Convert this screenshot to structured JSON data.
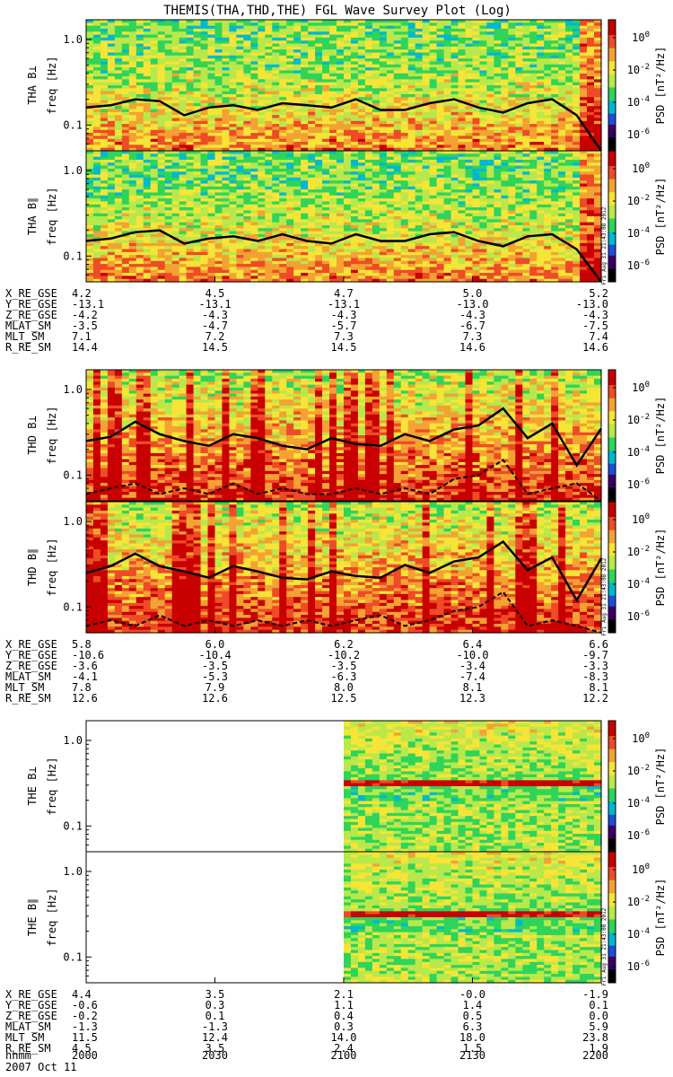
{
  "title": "THEMIS(THA,THD,THE) FGL Wave Survey Plot (Log)",
  "colorbar": {
    "label": "PSD [nT²/Hz]",
    "tick_labels": [
      "10^0",
      "10^-2",
      "10^-4",
      "10^-6"
    ],
    "stamp": "Fri Aug 31 21:43:08 2012"
  },
  "x_time": {
    "label": "hhmm",
    "date": "2007 Oct 11",
    "ticks": [
      "2000",
      "2030",
      "2100",
      "2130",
      "2200"
    ]
  },
  "ephemeris_rows": [
    "X_RE_GSE",
    "Y_RE_GSE",
    "Z_RE_GSE",
    "MLAT_SM",
    "MLT_SM",
    "R_RE_SM"
  ],
  "groups": [
    {
      "probe": "THA",
      "ephemeris": [
        [
          "4.2",
          "4.5",
          "4.7",
          "5.0",
          "5.2"
        ],
        [
          "-13.1",
          "-13.1",
          "-13.1",
          "-13.0",
          "-13.0"
        ],
        [
          "-4.2",
          "-4.3",
          "-4.3",
          "-4.3",
          "-4.3"
        ],
        [
          "-3.5",
          "-4.7",
          "-5.7",
          "-6.7",
          "-7.5"
        ],
        [
          "7.1",
          "7.2",
          "7.3",
          "7.3",
          "7.4"
        ],
        [
          "14.4",
          "14.5",
          "14.5",
          "14.6",
          "14.6"
        ]
      ]
    },
    {
      "probe": "THD",
      "ephemeris": [
        [
          "5.8",
          "6.0",
          "6.2",
          "6.4",
          "6.6"
        ],
        [
          "-10.6",
          "-10.4",
          "-10.2",
          "-10.0",
          "-9.7"
        ],
        [
          "-3.6",
          "-3.5",
          "-3.5",
          "-3.4",
          "-3.3"
        ],
        [
          "-4.1",
          "-5.3",
          "-6.3",
          "-7.4",
          "-8.3"
        ],
        [
          "7.8",
          "7.9",
          "8.0",
          "8.1",
          "8.1"
        ],
        [
          "12.6",
          "12.6",
          "12.5",
          "12.3",
          "12.2"
        ]
      ]
    },
    {
      "probe": "THE",
      "ephemeris": [
        [
          "4.4",
          "3.5",
          "2.1",
          "-0.0",
          "-1.9"
        ],
        [
          "-0.6",
          "0.3",
          "1.1",
          "1.4",
          "0.1"
        ],
        [
          "-0.2",
          "0.1",
          "0.4",
          "0.5",
          "0.0"
        ],
        [
          "-1.3",
          "-1.3",
          "0.3",
          "6.3",
          "5.9"
        ],
        [
          "11.5",
          "12.4",
          "14.0",
          "18.0",
          "23.8"
        ],
        [
          "4.5",
          "3.5",
          "2.4",
          "1.5",
          "1.9"
        ]
      ]
    }
  ],
  "chart_data": [
    {
      "type": "heatmap",
      "name": "THA B⊥",
      "ylabel": "THA B⊥",
      "yunit": "freq [Hz]",
      "ylim": [
        0.05,
        1.7
      ],
      "yscale": "log",
      "yticks": [
        "1.0",
        "0.1"
      ],
      "zlabel": "PSD [nT²/Hz]",
      "zlim": [
        1e-07,
        10
      ],
      "lines": [
        {
          "style": "solid",
          "hz": [
            0.16,
            0.17,
            0.2,
            0.19,
            0.13,
            0.16,
            0.17,
            0.15,
            0.18,
            0.17,
            0.16,
            0.2,
            0.15,
            0.15,
            0.18,
            0.2,
            0.16,
            0.14,
            0.18,
            0.2,
            0.13,
            0.05
          ]
        }
      ]
    },
    {
      "type": "heatmap",
      "name": "THA B∥",
      "ylabel": "THA B∥",
      "yunit": "freq [Hz]",
      "ylim": [
        0.05,
        1.7
      ],
      "yscale": "log",
      "yticks": [
        "1.0",
        "0.1"
      ],
      "zlabel": "PSD [nT²/Hz]",
      "zlim": [
        1e-07,
        10
      ],
      "lines": [
        {
          "style": "solid",
          "hz": [
            0.15,
            0.16,
            0.19,
            0.2,
            0.14,
            0.16,
            0.17,
            0.15,
            0.18,
            0.15,
            0.14,
            0.18,
            0.15,
            0.15,
            0.18,
            0.19,
            0.15,
            0.13,
            0.17,
            0.18,
            0.12,
            0.05
          ]
        }
      ]
    },
    {
      "type": "heatmap",
      "name": "THD B⊥",
      "ylabel": "THD B⊥",
      "yunit": "freq [Hz]",
      "ylim": [
        0.05,
        1.7
      ],
      "yscale": "log",
      "yticks": [
        "1.0",
        "0.1"
      ],
      "zlabel": "PSD [nT²/Hz]",
      "zlim": [
        1e-07,
        10
      ],
      "lines": [
        {
          "style": "solid",
          "hz": [
            0.25,
            0.28,
            0.42,
            0.3,
            0.25,
            0.22,
            0.3,
            0.27,
            0.22,
            0.2,
            0.27,
            0.23,
            0.22,
            0.3,
            0.25,
            0.34,
            0.38,
            0.6,
            0.27,
            0.4,
            0.13,
            0.35
          ]
        },
        {
          "style": "dashed",
          "hz": [
            0.06,
            0.07,
            0.08,
            0.06,
            0.07,
            0.06,
            0.08,
            0.06,
            0.07,
            0.06,
            0.06,
            0.07,
            0.06,
            0.07,
            0.06,
            0.09,
            0.1,
            0.15,
            0.06,
            0.07,
            0.08,
            0.05
          ]
        }
      ]
    },
    {
      "type": "heatmap",
      "name": "THD B∥",
      "ylabel": "THD B∥",
      "yunit": "freq [Hz]",
      "ylim": [
        0.05,
        1.7
      ],
      "yscale": "log",
      "yticks": [
        "1.0",
        "0.1"
      ],
      "zlabel": "PSD [nT²/Hz]",
      "zlim": [
        1e-07,
        10
      ],
      "lines": [
        {
          "style": "solid",
          "hz": [
            0.25,
            0.3,
            0.42,
            0.3,
            0.26,
            0.22,
            0.3,
            0.26,
            0.22,
            0.21,
            0.26,
            0.23,
            0.22,
            0.31,
            0.25,
            0.34,
            0.38,
            0.58,
            0.27,
            0.38,
            0.12,
            0.37
          ]
        },
        {
          "style": "dashed",
          "hz": [
            0.06,
            0.07,
            0.06,
            0.08,
            0.06,
            0.07,
            0.06,
            0.07,
            0.06,
            0.07,
            0.06,
            0.07,
            0.08,
            0.06,
            0.07,
            0.09,
            0.1,
            0.15,
            0.06,
            0.07,
            0.06,
            0.05
          ]
        }
      ]
    },
    {
      "type": "heatmap",
      "name": "THE B⊥",
      "ylabel": "THE B⊥",
      "yunit": "freq [Hz]",
      "ylim": [
        0.05,
        1.7
      ],
      "yscale": "log",
      "yticks": [
        "1.0",
        "0.1"
      ],
      "zlabel": "PSD [nT²/Hz]",
      "zlim": [
        1e-07,
        10
      ],
      "data_start_hhmm": "2100",
      "band_hz": 0.33,
      "lines": []
    },
    {
      "type": "heatmap",
      "name": "THE B∥",
      "ylabel": "THE B∥",
      "yunit": "freq [Hz]",
      "ylim": [
        0.05,
        1.7
      ],
      "yscale": "log",
      "yticks": [
        "1.0",
        "0.1"
      ],
      "zlabel": "PSD [nT²/Hz]",
      "zlim": [
        1e-07,
        10
      ],
      "data_start_hhmm": "2100",
      "band_hz": 0.33,
      "lines": []
    }
  ]
}
